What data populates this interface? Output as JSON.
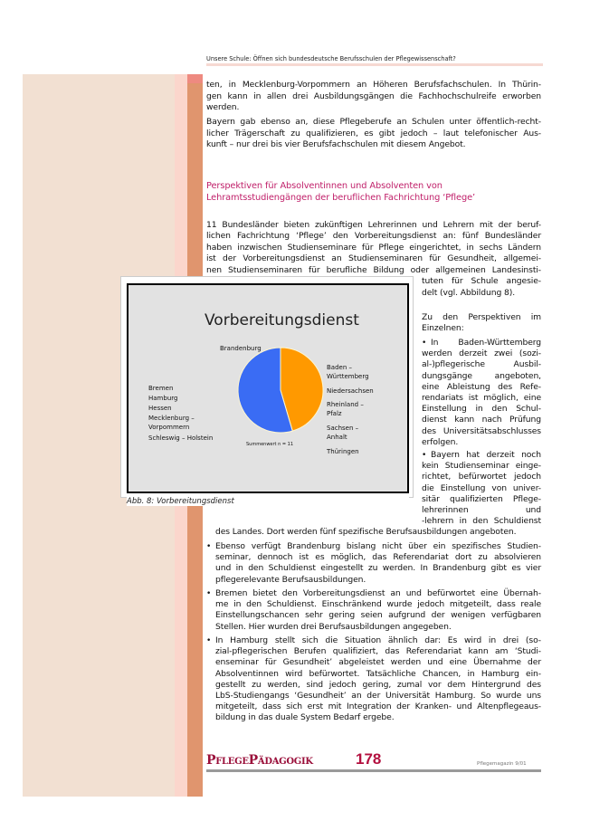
{
  "running_head": "Unsere Schule: Öffnen sich bundesdeutsche Berufsschulen der Pflegewissenschaft?",
  "p1": [
    "ten, in Mecklenburg-Vorpommern an Höheren Berufsfachschulen. In Thürin-",
    "gen kann in allen drei Ausbildungsgängen die Fachhochschulreife erworben",
    "werden."
  ],
  "p2": [
    "Bayern gab ebenso an, diese Pflegeberufe an Schulen unter öffentlich-recht-",
    "licher Trägerschaft zu qualifizieren, es gibt jedoch – laut telefonischer Aus-",
    "kunft – nur drei bis vier Berufsfachschulen mit diesem Angebot."
  ],
  "heading": [
    "Perspektiven für Absolventinnen und Absolventen von",
    "Lehramtsstudiengängen der beruflichen Fachrichtung ‘Pflege’"
  ],
  "p3": [
    "11 Bundesländer bieten zukünftigen Lehrerinnen und Lehrern mit der beruf-",
    "lichen Fachrichtung ‘Pflege’ den Vorbereitungsdienst an: fünf Bundesländer",
    "haben inzwischen Studienseminare für Pflege eingerichtet, in sechs Ländern",
    "ist der Vorbereitungsdienst an Studienseminaren für Gesundheit, allgemei-",
    "nen Studienseminaren für berufliche Bildung oder allgemeinen Landesinsti-"
  ],
  "p3_narrow": [
    "tuten für Schule angesie-",
    "delt (vgl. Abbildung 8)."
  ],
  "intro": [
    "Zu den Perspektiven im",
    "Einzelnen:"
  ],
  "b1": [
    "In Baden-Württemberg",
    "werden derzeit zwei (sozi-",
    "al-)pflegerische Ausbil-",
    "dungsgänge angeboten,",
    "eine Ableistung des Refe-",
    "rendariats ist möglich, eine",
    "Einstellung in den Schul-",
    "dienst kann nach Prüfung",
    "des Universitätsabschlusses",
    "erfolgen."
  ],
  "b2": [
    "Bayern hat derzeit noch",
    "kein Studienseminar einge-",
    "richtet, befürwortet jedoch",
    "die Einstellung von univer-",
    "sitär qualifizierten Pflege-",
    "lehrerinnen und",
    "-lehrern in den Schuldienst"
  ],
  "b2_cont": [
    "des Landes. Dort werden fünf spezifische Berufsausbildungen angeboten."
  ],
  "b3": [
    "Ebenso verfügt Brandenburg bislang nicht über ein spezifisches Studien-",
    "seminar, dennoch ist es möglich, das Referendariat dort zu absolvieren",
    "und in den Schuldienst eingestellt zu werden. In Brandenburg gibt es vier",
    "pflegerelevante Berufsausbildungen."
  ],
  "b4": [
    "Bremen bietet den Vorbereitungsdienst an und befürwortet eine Übernah-",
    "me in den Schuldienst. Einschränkend wurde jedoch mitgeteilt, dass reale",
    "Einstellungschancen sehr gering seien aufgrund der wenigen verfügbaren",
    "Stellen. Hier wurden drei Berufsausbildungen angegeben."
  ],
  "b5": [
    "In Hamburg stellt sich die Situation ähnlich dar: Es wird in drei (so-",
    "zial-pflegerischen Berufen qualifiziert, das Referendariat kann am ‘Studi-",
    "enseminar für Gesundheit’ abgeleistet werden und eine Übernahme der",
    "Absolventinnen wird befürwortet. Tatsächliche Chancen, in Hamburg ein-",
    "gestellt zu werden, sind jedoch gering, zumal vor dem Hintergrund des",
    "LbS-Studiengangs ‘Gesundheit’ an der Universität Hamburg. So wurde uns",
    "mitgeteilt, dass sich erst mit Integration der Kranken- und Altenpflegeaus-",
    "bildung in das duale System Bedarf ergebe."
  ],
  "bullet_symbol": "•",
  "figure": {
    "caption": "Abb. 8: Vorbereitungsdienst",
    "chart_data": {
      "type": "pie",
      "title": "Vorbereitungsdienst",
      "slices": [
        {
          "label_group": [
            "Baden – Württemberg",
            "Niedersachsen",
            "Rheinland – Pfalz",
            "Sachsen – Anhalt",
            "Thüringen"
          ],
          "value": 5,
          "color": "#ff9900"
        },
        {
          "label_group": [
            "Brandenburg",
            "Bremen",
            "Hamburg",
            "Hessen",
            "Mecklenburg – Vorpommern",
            "Schleswig – Holstein"
          ],
          "value": 6,
          "color": "#3a6cf4"
        }
      ],
      "total_label": "Summenwert n = 11"
    }
  },
  "footer": {
    "brand": "PflegePädagogik",
    "page": "178",
    "issue": "Pflegemagazin 9/01"
  }
}
